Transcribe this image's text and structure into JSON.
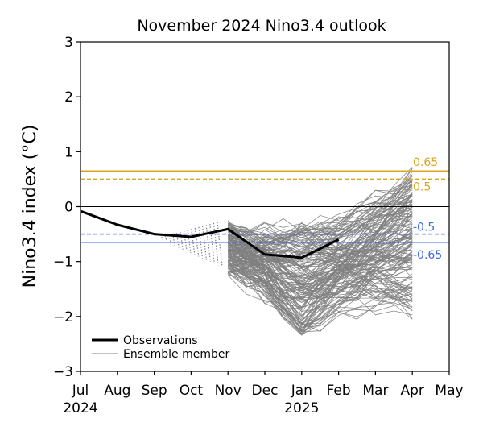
{
  "chart_data": {
    "type": "line",
    "title": "November 2024 Nino3.4 outlook",
    "ylabel": "Nino3.4 index (°C)",
    "xlabel": "",
    "ylim": [
      -3,
      3
    ],
    "yticks": [
      -3,
      -2,
      -1,
      0,
      1,
      2,
      3
    ],
    "ytick_labels": [
      "−3",
      "−2",
      "−1",
      "0",
      "1",
      "2",
      "3"
    ],
    "xticks": [
      {
        "month": 0,
        "label": "Jul",
        "sublabel": "2024"
      },
      {
        "month": 1,
        "label": "Aug"
      },
      {
        "month": 2,
        "label": "Sep"
      },
      {
        "month": 3,
        "label": "Oct"
      },
      {
        "month": 4,
        "label": "Nov"
      },
      {
        "month": 5,
        "label": "Dec"
      },
      {
        "month": 6,
        "label": "Jan",
        "sublabel": "2025"
      },
      {
        "month": 7,
        "label": "Feb"
      },
      {
        "month": 8,
        "label": "Mar"
      },
      {
        "month": 9,
        "label": "Apr"
      },
      {
        "month": 10,
        "label": "May"
      }
    ],
    "xlim": [
      0,
      10
    ],
    "thresholds": [
      {
        "value": 0.65,
        "label": "0.65",
        "style": "solid",
        "color": "#DAA520"
      },
      {
        "value": 0.5,
        "label": "0.5",
        "style": "dashed",
        "color": "#DAA520"
      },
      {
        "value": 0,
        "label": "",
        "style": "solid",
        "color": "#000000"
      },
      {
        "value": -0.5,
        "label": "-0.5",
        "style": "dashed",
        "color": "#4169E1"
      },
      {
        "value": -0.65,
        "label": "-0.65",
        "style": "solid",
        "color": "#4169E1"
      }
    ],
    "observations": {
      "name": "Observations",
      "color": "#000000",
      "x": [
        0,
        1,
        2,
        3,
        4,
        5,
        6,
        7
      ],
      "y": [
        -0.08,
        -0.33,
        -0.5,
        -0.55,
        -0.41,
        -0.87,
        -0.93,
        -0.6
      ]
    },
    "ensemble": {
      "name": "Ensemble member",
      "color": "#808080",
      "members": 160,
      "start": 4,
      "end": 9,
      "start_range": [
        -1.25,
        -0.25
      ],
      "end_range": [
        -2.0,
        0.65
      ],
      "trough_month": 6,
      "trough_range": [
        -2.35,
        -0.3
      ]
    },
    "hindcast_fan": {
      "color": "#808080",
      "from_month": 2.2,
      "to_month": 3.8,
      "top_start": -0.55,
      "top_end": -0.28,
      "bottom_start": -0.62,
      "bottom_end": -1.1
    },
    "legend": {
      "position": "lower-left",
      "entries": [
        "Observations",
        "Ensemble member"
      ]
    }
  }
}
